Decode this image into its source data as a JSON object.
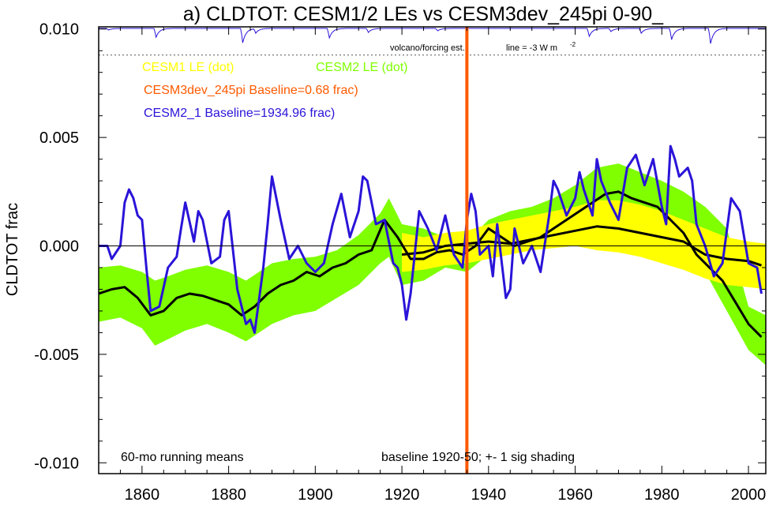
{
  "chart_data": {
    "type": "line",
    "title": "a) CLDTOT: CESM1/2 LEs vs CESM3dev_245pi 0-90_",
    "xlabel": "",
    "ylabel": "CLDTOT frac",
    "xlim": [
      1850,
      2004
    ],
    "ylim": [
      -0.0105,
      0.0101
    ],
    "xticks_major": [
      1860,
      1880,
      1900,
      1920,
      1940,
      1960,
      1980,
      2000
    ],
    "xtick_labels": [
      "1860",
      "1880",
      "1900",
      "1920",
      "1940",
      "1960",
      "1980",
      "2000"
    ],
    "yticks_major": [
      0.01,
      0.005,
      0.0,
      -0.005,
      -0.01
    ],
    "ytick_labels": [
      "0.010",
      "0.005",
      "0.000",
      "-0.005",
      "-0.010"
    ],
    "grid": false,
    "zero_line": 0.0,
    "volcano_ref_line": 0.0088,
    "vertical_marker_year": 1935,
    "legend": [
      {
        "text": "CESM1 LE (dot)",
        "color": "#ffff00"
      },
      {
        "text": "CESM2 LE (dot)",
        "color": "#7fff00"
      },
      {
        "text": "CESM3dev_245pi Baseline=0.68 frac)",
        "color": "#ff5a00"
      },
      {
        "text": "CESM2_1 Baseline=1934.96 frac)",
        "color": "#2a14d8"
      }
    ],
    "annotations": {
      "volcano": "volcano/forcing est.",
      "volcano_line": "line = -3 W m",
      "volcano_line_exp": "-2",
      "running": "60-mo running means",
      "baseline": "baseline 1920-50; +- 1 sig shading"
    },
    "series": [
      {
        "name": "CESM2 LE",
        "kind": "band",
        "color": "#7fff00",
        "x": [
          1850,
          1855,
          1860,
          1863,
          1866,
          1870,
          1875,
          1880,
          1884,
          1887,
          1890,
          1895,
          1900,
          1905,
          1910,
          1915,
          1917,
          1920,
          1925,
          1930,
          1935,
          1940,
          1945,
          1950,
          1955,
          1960,
          1965,
          1970,
          1975,
          1980,
          1985,
          1990,
          1995,
          2000,
          2004
        ],
        "upper": [
          -0.001,
          -0.0009,
          -0.0012,
          -0.0016,
          -0.0014,
          -0.0011,
          -0.0009,
          -0.0012,
          -0.0016,
          -0.0012,
          -0.0008,
          -0.0006,
          -0.0005,
          -0.0002,
          0.0005,
          0.0015,
          0.0022,
          0.001,
          0.0008,
          0.0004,
          0.0002,
          0.0012,
          0.0016,
          0.0018,
          0.0022,
          0.0028,
          0.0036,
          0.0038,
          0.0034,
          0.003,
          0.0025,
          0.0018,
          0.0008,
          -0.0028,
          -0.0032
        ],
        "lower": [
          -0.0035,
          -0.0033,
          -0.0038,
          -0.0046,
          -0.0043,
          -0.0039,
          -0.0036,
          -0.004,
          -0.0044,
          -0.004,
          -0.0036,
          -0.0032,
          -0.003,
          -0.0024,
          -0.0018,
          -0.0008,
          -0.0005,
          -0.0018,
          -0.0016,
          -0.001,
          -0.0012,
          -0.0004,
          0.0,
          0.0002,
          0.0006,
          0.0012,
          0.0016,
          0.0015,
          0.0012,
          0.0006,
          -0.0002,
          -0.0012,
          -0.003,
          -0.0048,
          -0.0055
        ]
      },
      {
        "name": "CESM1 LE",
        "kind": "band",
        "color": "#ffff00",
        "x": [
          1920,
          1925,
          1930,
          1935,
          1940,
          1945,
          1950,
          1955,
          1960,
          1965,
          1970,
          1975,
          1980,
          1985,
          1990,
          1995,
          2000,
          2004
        ],
        "upper": [
          0.0006,
          0.0004,
          0.0006,
          0.0007,
          0.001,
          0.0012,
          0.0014,
          0.0016,
          0.0018,
          0.0021,
          0.0021,
          0.0019,
          0.0016,
          0.0012,
          0.0008,
          0.0004,
          0.0002,
          0.0001
        ],
        "lower": [
          -0.0012,
          -0.0011,
          -0.0009,
          -0.0008,
          -0.0006,
          -0.0004,
          -0.0002,
          -0.0001,
          0.0,
          -0.0002,
          -0.0003,
          -0.0005,
          -0.0008,
          -0.0011,
          -0.0015,
          -0.0018,
          -0.0019,
          -0.002
        ]
      },
      {
        "name": "CESM2 LE mean",
        "kind": "line",
        "color": "#000000",
        "x": [
          1850,
          1853,
          1856,
          1859,
          1862,
          1865,
          1868,
          1871,
          1874,
          1877,
          1880,
          1883,
          1886,
          1889,
          1892,
          1895,
          1898,
          1901,
          1904,
          1907,
          1910,
          1913,
          1916,
          1919,
          1922,
          1925,
          1928,
          1931,
          1934,
          1937,
          1940,
          1943,
          1946,
          1949,
          1952,
          1955,
          1958,
          1961,
          1964,
          1967,
          1970,
          1973,
          1976,
          1979,
          1982,
          1985,
          1988,
          1991,
          1994,
          1997,
          2000,
          2003
        ],
        "values": [
          -0.0022,
          -0.002,
          -0.0019,
          -0.0024,
          -0.0032,
          -0.003,
          -0.0024,
          -0.0022,
          -0.0023,
          -0.0025,
          -0.0027,
          -0.0032,
          -0.0028,
          -0.0022,
          -0.0018,
          -0.0016,
          -0.0012,
          -0.0014,
          -0.001,
          -0.0008,
          -0.0004,
          -0.0002,
          0.0012,
          0.0004,
          -0.0006,
          -0.0006,
          -0.0003,
          -0.0002,
          -0.0004,
          0.0,
          0.0008,
          0.0004,
          0.0,
          0.0002,
          0.0004,
          0.0008,
          0.0012,
          0.0016,
          0.002,
          0.0024,
          0.0025,
          0.0022,
          0.002,
          0.0018,
          0.0012,
          0.0006,
          -0.0004,
          -0.001,
          -0.0016,
          -0.0026,
          -0.0036,
          -0.0042
        ]
      },
      {
        "name": "CESM1 LE mean",
        "kind": "line",
        "color": "#000000",
        "x": [
          1920,
          1925,
          1930,
          1935,
          1940,
          1945,
          1950,
          1955,
          1960,
          1965,
          1970,
          1975,
          1980,
          1985,
          1990,
          1995,
          2000,
          2003
        ],
        "values": [
          -0.0004,
          -0.0003,
          0.0,
          0.0001,
          0.0002,
          0.0001,
          0.0003,
          0.0005,
          0.0007,
          0.0009,
          0.0008,
          0.0006,
          0.0004,
          0.0002,
          -0.0004,
          -0.0006,
          -0.0007,
          -0.0009
        ]
      },
      {
        "name": "CESM2_1",
        "kind": "line",
        "color": "#2a14d8",
        "x": [
          1850,
          1852,
          1853,
          1855,
          1856,
          1857,
          1858,
          1859,
          1860,
          1861,
          1862,
          1864,
          1866,
          1868,
          1869,
          1870,
          1872,
          1873,
          1874,
          1876,
          1878,
          1879,
          1880,
          1882,
          1883,
          1884,
          1885,
          1886,
          1888,
          1889,
          1890,
          1892,
          1894,
          1896,
          1898,
          1900,
          1902,
          1904,
          1906,
          1908,
          1910,
          1911,
          1912,
          1914,
          1916,
          1918,
          1919,
          1920,
          1921,
          1922,
          1924,
          1926,
          1928,
          1930,
          1932,
          1934,
          1935,
          1936,
          1937,
          1938,
          1940,
          1941,
          1942,
          1944,
          1945,
          1946,
          1948,
          1950,
          1952,
          1954,
          1955,
          1956,
          1958,
          1960,
          1961,
          1962,
          1964,
          1965,
          1966,
          1968,
          1970,
          1972,
          1974,
          1976,
          1978,
          1980,
          1981,
          1982,
          1983,
          1984,
          1986,
          1987,
          1988,
          1990,
          1992,
          1994,
          1996,
          1998,
          2000,
          2002,
          2003
        ],
        "values": [
          0.0,
          0.0,
          -0.0006,
          0.0,
          0.002,
          0.0026,
          0.0022,
          0.0014,
          0.0012,
          -0.001,
          -0.003,
          -0.0028,
          -0.001,
          -0.0005,
          0.0008,
          0.002,
          0.0002,
          0.0016,
          0.0012,
          -0.0008,
          -0.0005,
          0.0012,
          0.0016,
          -0.002,
          -0.0028,
          -0.0036,
          -0.0034,
          -0.004,
          -0.001,
          0.001,
          0.0032,
          0.0012,
          -0.0006,
          0.0,
          -0.0008,
          -0.0012,
          -0.0008,
          0.001,
          0.0024,
          0.0004,
          0.0016,
          0.0032,
          0.003,
          0.001,
          0.0012,
          -0.0008,
          -0.001,
          -0.0018,
          -0.0034,
          -0.0022,
          0.0016,
          0.0008,
          -0.0002,
          0.0014,
          -0.0004,
          -0.001,
          0.0012,
          0.0024,
          0.0016,
          -0.0004,
          0.0,
          -0.0014,
          0.001,
          -0.0024,
          -0.002,
          0.0008,
          -0.0008,
          0.0,
          -0.0012,
          0.0014,
          0.003,
          0.0026,
          0.0014,
          0.0022,
          0.0034,
          0.0026,
          0.0014,
          0.004,
          0.003,
          0.002,
          0.0012,
          0.0036,
          0.0042,
          0.0028,
          0.004,
          0.0018,
          0.001,
          0.0046,
          0.004,
          0.0032,
          0.0036,
          0.003,
          0.001,
          0.0,
          -0.0014,
          -0.0008,
          0.0022,
          0.0016,
          -0.0008,
          -0.001,
          -0.0022
        ]
      }
    ],
    "volcano_dips": [
      {
        "year": 1852,
        "depth": 0.1
      },
      {
        "year": 1863,
        "depth": 0.55
      },
      {
        "year": 1883,
        "depth": 0.9
      },
      {
        "year": 1886,
        "depth": 0.3
      },
      {
        "year": 1903,
        "depth": 0.6
      },
      {
        "year": 1912,
        "depth": 0.25
      },
      {
        "year": 1928,
        "depth": 0.15
      },
      {
        "year": 1963,
        "depth": 0.5
      },
      {
        "year": 1968,
        "depth": 0.2
      },
      {
        "year": 1975,
        "depth": 0.3
      },
      {
        "year": 1982,
        "depth": 0.7
      },
      {
        "year": 1991,
        "depth": 0.95
      }
    ]
  }
}
